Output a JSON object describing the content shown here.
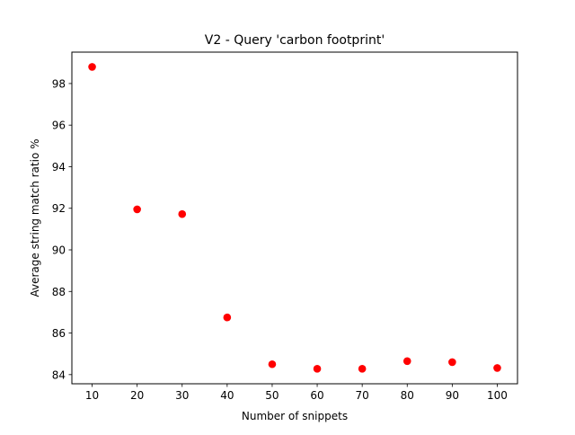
{
  "chart_data": {
    "type": "scatter",
    "title": "V2 - Query 'carbon footprint'",
    "xlabel": "Number of snippets",
    "ylabel": "Average string match ratio %",
    "x": [
      10,
      20,
      30,
      40,
      50,
      60,
      70,
      80,
      90,
      100
    ],
    "y": [
      98.8,
      91.95,
      91.72,
      86.75,
      84.5,
      84.28,
      84.28,
      84.65,
      84.6,
      84.32
    ],
    "xlim": [
      5.5,
      104.5
    ],
    "ylim": [
      83.56,
      99.51
    ],
    "xticks": [
      10,
      20,
      30,
      40,
      50,
      60,
      70,
      80,
      90,
      100
    ],
    "yticks": [
      84,
      86,
      88,
      90,
      92,
      94,
      96,
      98
    ],
    "marker_color": "#ff0000",
    "grid": false,
    "legend": null
  }
}
